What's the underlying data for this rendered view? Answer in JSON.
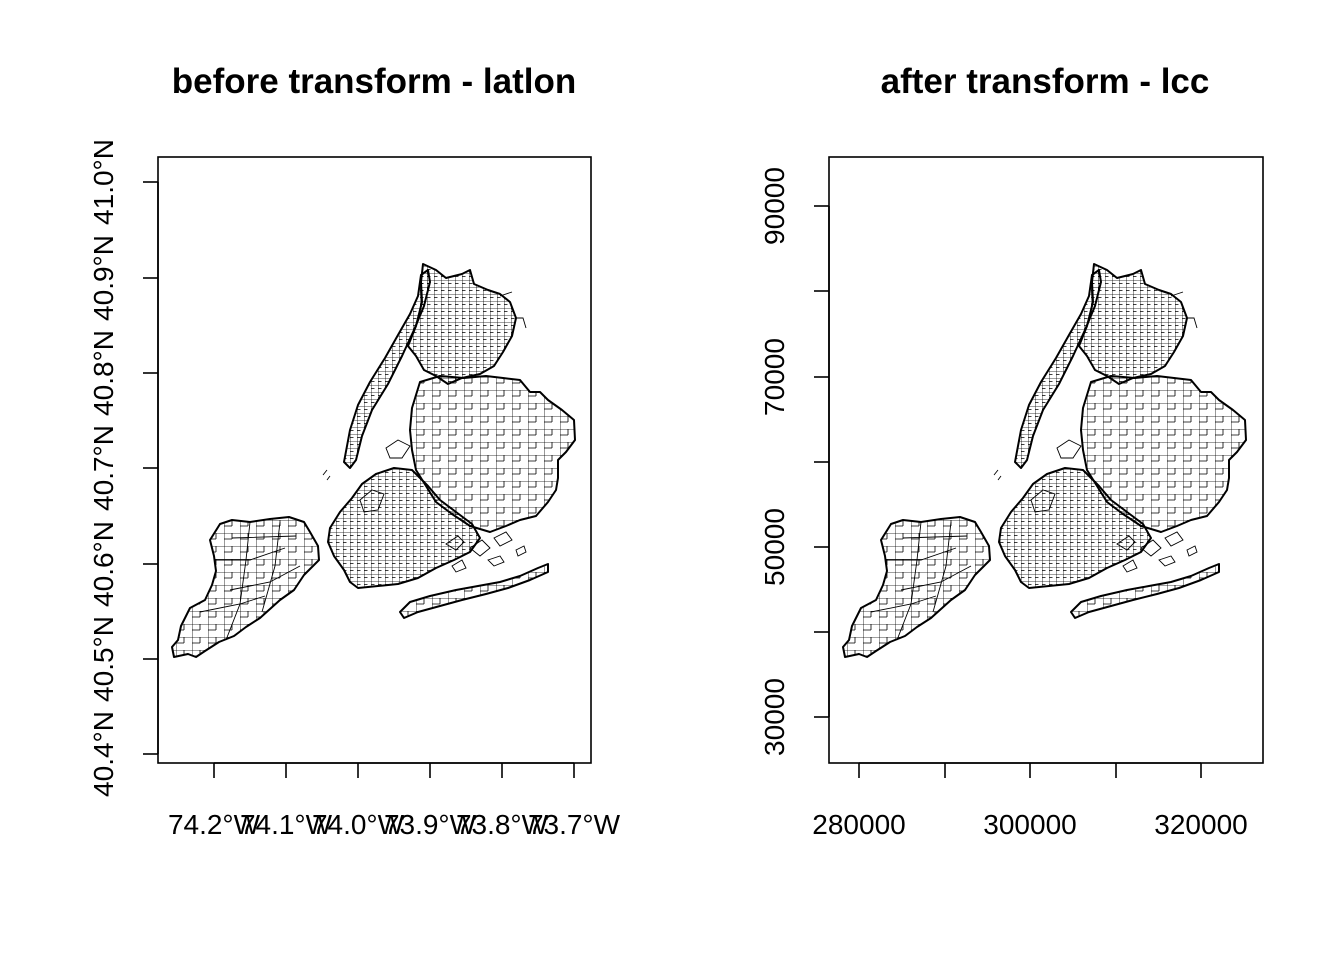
{
  "panels": [
    {
      "id": "latlon",
      "title": "before transform - latlon",
      "x_ticks": [
        "74.2°W",
        "74.1°W",
        "74.0°W",
        "73.9°W",
        "73.8°W",
        "73.7°W"
      ],
      "y_ticks": [
        "40.4°N",
        "40.5°N",
        "40.6°N",
        "40.7°N",
        "40.8°N",
        "40.9°N",
        "41.0°N"
      ]
    },
    {
      "id": "lcc",
      "title": "after transform - lcc",
      "x_ticks": [
        "280000",
        "300000",
        "320000"
      ],
      "y_ticks": [
        "30000",
        "50000",
        "70000",
        "90000"
      ]
    }
  ],
  "map": {
    "subject": "New York City census tract boundaries",
    "regions": [
      "staten-island",
      "manhattan",
      "bronx",
      "brooklyn",
      "queens",
      "rockaway",
      "jamaica-bay-islands"
    ],
    "colors": {
      "line": "#000000",
      "background": "#ffffff"
    }
  }
}
